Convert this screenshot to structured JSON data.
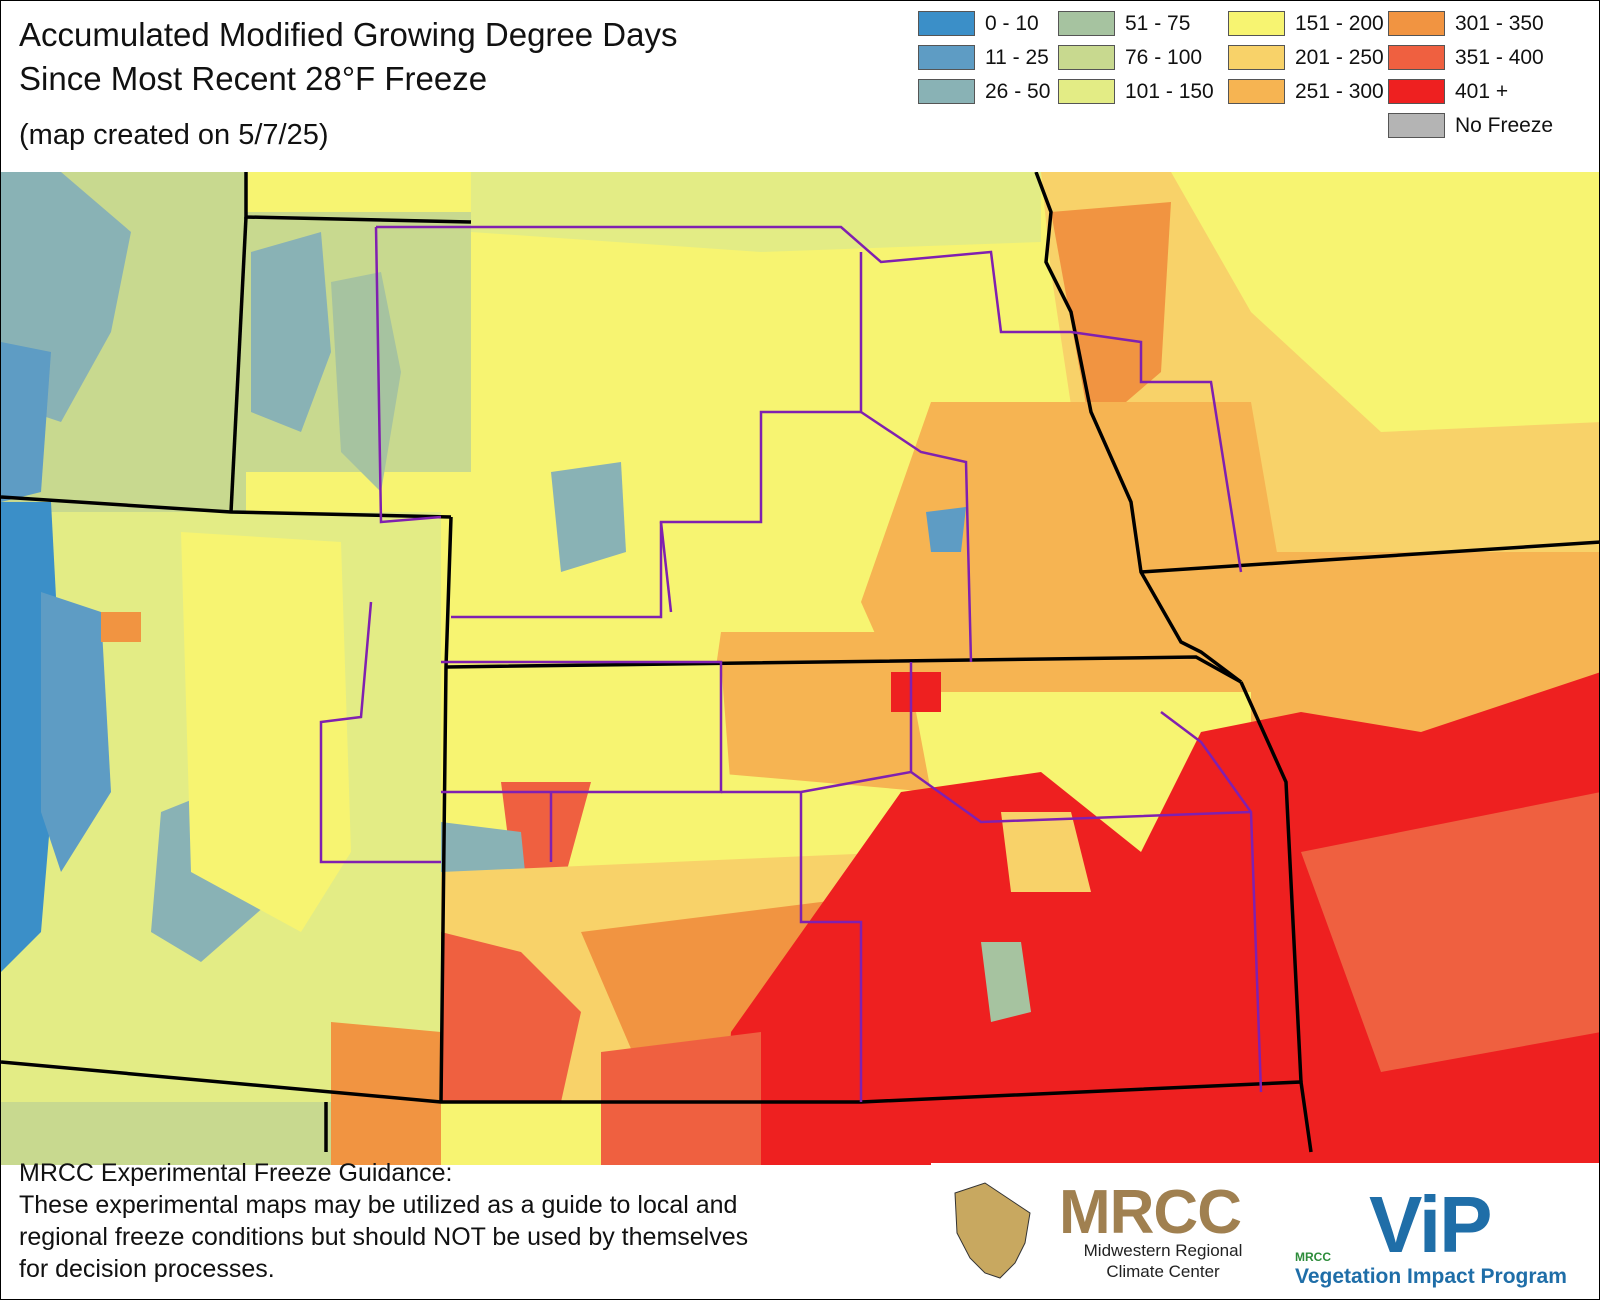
{
  "title": {
    "line1": "Accumulated Modified Growing Degree Days",
    "line2": "Since Most Recent 28°F Freeze",
    "created": "(map created on 5/7/25)"
  },
  "legend": [
    {
      "label": "0 - 10",
      "color": "#3b8fc8"
    },
    {
      "label": "11 - 25",
      "color": "#5e9cc4"
    },
    {
      "label": "26 - 50",
      "color": "#89b2b5"
    },
    {
      "label": "51 - 75",
      "color": "#a6c3a0"
    },
    {
      "label": "76 - 100",
      "color": "#c8d98f"
    },
    {
      "label": "101 - 150",
      "color": "#e3ec85"
    },
    {
      "label": "151 - 200",
      "color": "#f7f471"
    },
    {
      "label": "201 - 250",
      "color": "#f8d269"
    },
    {
      "label": "251 - 300",
      "color": "#f6b452"
    },
    {
      "label": "301 - 350",
      "color": "#f19441"
    },
    {
      "label": "351 - 400",
      "color": "#ef6040"
    },
    {
      "label": "401 +",
      "color": "#ee2020"
    },
    {
      "label": "No Freeze",
      "color": "#b4b4b4"
    }
  ],
  "footer": {
    "heading": "MRCC Experimental Freeze Guidance:",
    "line1": "These experimental maps may be utilized as a guide to local and",
    "line2": "regional freeze conditions but should NOT be used by themselves",
    "line3": "for decision processes."
  },
  "logos": {
    "mrcc": "MRCC",
    "mrcc_sub1": "Midwestern Regional",
    "mrcc_sub2": "Climate Center",
    "vip": "ViP",
    "vip_small": "MRCC",
    "vip_sub": "Vegetation Impact Program"
  }
}
